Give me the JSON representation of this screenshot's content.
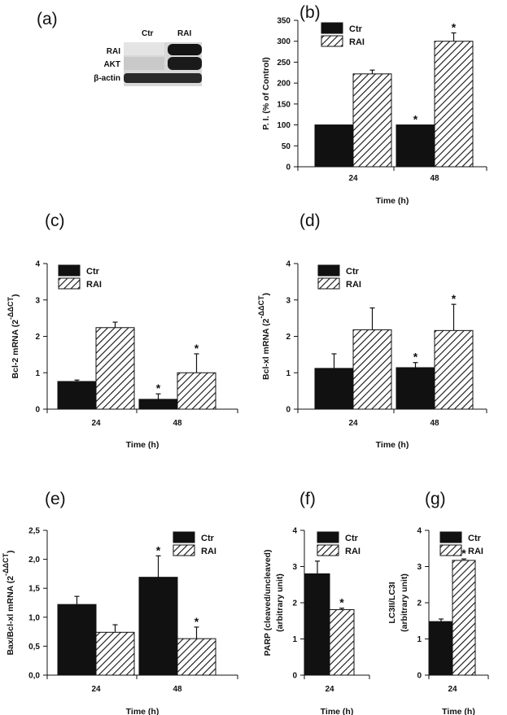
{
  "blot": {
    "panel": "(a)",
    "lanes": [
      "Ctr",
      "RAI"
    ],
    "rows": [
      "RAI",
      "AKT",
      "β-actin"
    ]
  },
  "chart_data": [
    {
      "panel": "(b)",
      "type": "bar",
      "categories": [
        "24",
        "48"
      ],
      "series": [
        {
          "name": "Ctr",
          "values": [
            100,
            100
          ],
          "errors": [
            0,
            0
          ]
        },
        {
          "name": "RAI",
          "values": [
            222,
            300
          ],
          "errors": [
            9,
            20
          ]
        }
      ],
      "significance": [
        [
          false,
          true
        ],
        [
          false,
          true
        ]
      ],
      "xlabel": "Time (h)",
      "ylabel": "P. I. (% of Control)",
      "ylabel_sup": "",
      "ylim": [
        0,
        350
      ],
      "yticks": [
        0,
        50,
        100,
        150,
        200,
        250,
        300,
        350
      ],
      "ytick_labels": [
        "0",
        "50",
        "100",
        "150",
        "200",
        "250",
        "300",
        "350"
      ]
    },
    {
      "panel": "(c)",
      "type": "bar",
      "categories": [
        "24",
        "48"
      ],
      "series": [
        {
          "name": "Ctr",
          "values": [
            0.76,
            0.27
          ],
          "errors": [
            0.04,
            0.15
          ]
        },
        {
          "name": "RAI",
          "values": [
            2.24,
            1.0
          ],
          "errors": [
            0.15,
            0.52
          ]
        }
      ],
      "significance": [
        [
          false,
          true
        ],
        [
          false,
          true
        ]
      ],
      "xlabel": "Time (h)",
      "ylabel": "Bcl-2 mRNA (2",
      "ylabel_sup": "-ΔΔCT",
      "ylabel_close": ")",
      "ylim": [
        0,
        4
      ],
      "yticks": [
        0,
        1,
        2,
        3,
        4
      ],
      "ytick_labels": [
        "0",
        "1",
        "2",
        "3",
        "4"
      ]
    },
    {
      "panel": "(d)",
      "type": "bar",
      "categories": [
        "24",
        "48"
      ],
      "series": [
        {
          "name": "Ctr",
          "values": [
            1.12,
            1.14
          ],
          "errors": [
            0.4,
            0.14
          ]
        },
        {
          "name": "RAI",
          "values": [
            2.18,
            2.16
          ],
          "errors": [
            0.6,
            0.72
          ]
        }
      ],
      "significance": [
        [
          false,
          true
        ],
        [
          false,
          true
        ]
      ],
      "xlabel": "Time (h)",
      "ylabel": "Bcl-xl mRNA (2",
      "ylabel_sup": "-ΔΔCT",
      "ylabel_close": ")",
      "ylim": [
        0,
        4
      ],
      "yticks": [
        0,
        1,
        2,
        3,
        4
      ],
      "ytick_labels": [
        "0",
        "1",
        "2",
        "3",
        "4"
      ]
    },
    {
      "panel": "(e)",
      "type": "bar",
      "categories": [
        "24",
        "48"
      ],
      "series": [
        {
          "name": "Ctr",
          "values": [
            1.22,
            1.69
          ],
          "errors": [
            0.14,
            0.37
          ]
        },
        {
          "name": "RAI",
          "values": [
            0.74,
            0.63
          ],
          "errors": [
            0.13,
            0.2
          ]
        }
      ],
      "significance": [
        [
          false,
          true
        ],
        [
          false,
          true
        ]
      ],
      "xlabel": "Time (h)",
      "ylabel": "Bax/Bcl-xl mRNA (2",
      "ylabel_sup": "-ΔΔCT",
      "ylabel_close": ")",
      "ylim": [
        0,
        2.5
      ],
      "yticks": [
        0,
        0.5,
        1.0,
        1.5,
        2.0,
        2.5
      ],
      "ytick_labels": [
        "0,0",
        "0,5",
        "1,0",
        "1,5",
        "2,0",
        "2,5"
      ]
    },
    {
      "panel": "(f)",
      "type": "bar",
      "categories": [
        "24"
      ],
      "series": [
        {
          "name": "Ctr",
          "values": [
            2.8
          ],
          "errors": [
            0.35
          ]
        },
        {
          "name": "RAI",
          "values": [
            1.81
          ],
          "errors": [
            0.04
          ]
        }
      ],
      "significance": [
        [
          false
        ],
        [
          true
        ]
      ],
      "xlabel": "Time (h)",
      "ylabel": "PARP (cleaved/uncleaved)",
      "ylabel2": "(arbitrary unit)",
      "ylim": [
        0,
        4
      ],
      "yticks": [
        0,
        1,
        2,
        3,
        4
      ],
      "ytick_labels": [
        "0",
        "1",
        "2",
        "3",
        "4"
      ]
    },
    {
      "panel": "(g)",
      "type": "bar",
      "categories": [
        "24"
      ],
      "series": [
        {
          "name": "Ctr",
          "values": [
            1.48
          ],
          "errors": [
            0.07
          ]
        },
        {
          "name": "RAI",
          "values": [
            3.17
          ],
          "errors": [
            0.04
          ]
        }
      ],
      "significance": [
        [
          false
        ],
        [
          true
        ]
      ],
      "xlabel": "Time (h)",
      "ylabel": "LC3II/LC3I",
      "ylabel2": "(arbitrary unit)",
      "ylim": [
        0,
        4
      ],
      "yticks": [
        0,
        1,
        2,
        3,
        4
      ],
      "ytick_labels": [
        "0",
        "1",
        "2",
        "3",
        "4"
      ]
    }
  ]
}
